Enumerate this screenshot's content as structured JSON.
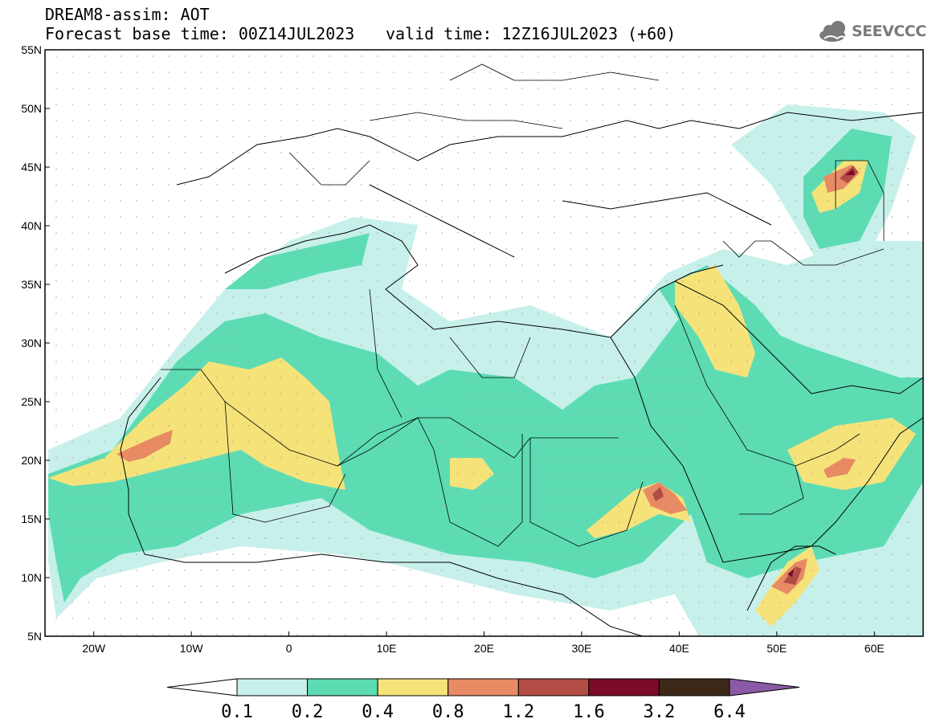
{
  "header": {
    "title": "DREAM8-assim: AOT",
    "base_time": "Forecast base time: 00Z14JUL2023",
    "valid_time": "valid time: 12Z16JUL2023 (+60)"
  },
  "logo": {
    "text": "SEEVCCC",
    "icon": "cloud-icon"
  },
  "map": {
    "lon_range": [
      -25,
      65
    ],
    "lat_range": [
      5,
      55
    ],
    "lat_ticks": [
      "55N",
      "50N",
      "45N",
      "40N",
      "35N",
      "30N",
      "25N",
      "20N",
      "15N",
      "10N",
      "5N"
    ],
    "lon_ticks": [
      "20W",
      "10W",
      "0",
      "10E",
      "20E",
      "30E",
      "40E",
      "50E",
      "60E"
    ]
  },
  "colorbar": {
    "labels": [
      "0.1",
      "0.2",
      "0.4",
      "0.8",
      "1.2",
      "1.6",
      "3.2",
      "6.4"
    ],
    "colors": [
      "#ffffff",
      "#c8f0ea",
      "#5ddcb4",
      "#f5e37a",
      "#e88b64",
      "#b24d45",
      "#7a0a28",
      "#3d2818",
      "#8a5aa6"
    ]
  }
}
